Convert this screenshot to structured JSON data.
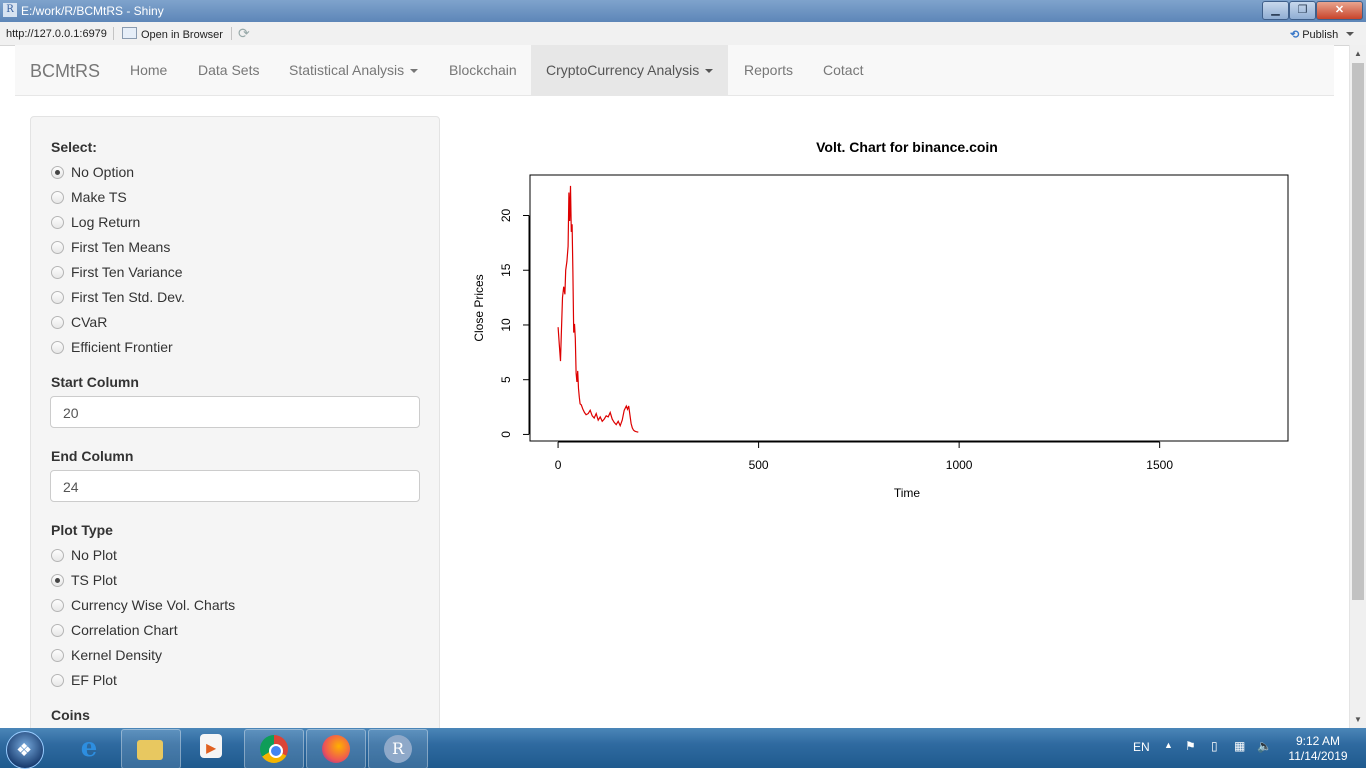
{
  "window": {
    "title": "E:/work/R/BCMtRS - Shiny",
    "app_icon": "R",
    "minimize": "▁",
    "maximize": "❐",
    "close": "✕"
  },
  "addressbar": {
    "url": "http://127.0.0.1:6979",
    "open_browser": "Open in Browser",
    "publish": "Publish"
  },
  "navbar": {
    "brand": "BCMtRS",
    "items": [
      {
        "label": "Home"
      },
      {
        "label": "Data Sets"
      },
      {
        "label": "Statistical Analysis"
      },
      {
        "label": "Blockchain"
      },
      {
        "label": "CryptoCurrency Analysis"
      },
      {
        "label": "Reports"
      },
      {
        "label": "Cotact"
      }
    ]
  },
  "sidebar": {
    "select_label": "Select:",
    "select_options": [
      "No Option",
      "Make TS",
      "Log Return",
      "First Ten Means",
      "First Ten Variance",
      "First Ten Std. Dev.",
      "CVaR",
      "Efficient Frontier"
    ],
    "select_selected": "No Option",
    "start_column_label": "Start Column",
    "start_column_value": "20",
    "end_column_label": "End Column",
    "end_column_value": "24",
    "plot_type_label": "Plot Type",
    "plot_type_options": [
      "No Plot",
      "TS Plot",
      "Currency Wise Vol. Charts",
      "Correlation Chart",
      "Kernel Density",
      "EF Plot"
    ],
    "plot_type_selected": "TS Plot",
    "coins_label": "Coins"
  },
  "chart_data": {
    "type": "line",
    "title": "Volt. Chart for  binance.coin",
    "xlabel": "Time",
    "ylabel": "Close Prices",
    "xlim": [
      -70,
      1820
    ],
    "ylim": [
      -0.6,
      23.7
    ],
    "xticks": [
      0,
      500,
      1000,
      1500
    ],
    "yticks": [
      0,
      5,
      10,
      15,
      20
    ],
    "color": "#dd0000",
    "series": [
      {
        "x": [
          0,
          3,
          6,
          8,
          11,
          14,
          17,
          19,
          22,
          25,
          27,
          29,
          31,
          33,
          35,
          37,
          39,
          41,
          43,
          45,
          47,
          49,
          51,
          53,
          55,
          58,
          62,
          66,
          70,
          75,
          80,
          85,
          90,
          95,
          100,
          105,
          110,
          115,
          120,
          125,
          130,
          135,
          140,
          145,
          150,
          155,
          160,
          165,
          170,
          173,
          176,
          179,
          182,
          185,
          188,
          191,
          195,
          200
        ],
        "y": [
          9.8,
          8.2,
          6.7,
          9.1,
          12.5,
          13.5,
          12.8,
          15.0,
          15.8,
          17.2,
          22.1,
          19.5,
          22.7,
          18.5,
          19.2,
          14.8,
          9.3,
          10.1,
          8.8,
          5.6,
          4.8,
          5.8,
          4.2,
          3.4,
          2.8,
          2.7,
          2.3,
          2.0,
          1.8,
          1.9,
          2.2,
          1.7,
          1.5,
          1.9,
          1.3,
          1.6,
          1.2,
          1.4,
          1.7,
          1.6,
          2.0,
          1.4,
          1.1,
          0.9,
          1.2,
          0.8,
          1.3,
          2.2,
          2.6,
          2.3,
          2.6,
          1.8,
          1.0,
          0.6,
          0.4,
          0.3,
          0.25,
          0.2
        ]
      }
    ]
  },
  "taskbar": {
    "language": "EN",
    "time": "9:12 AM",
    "date": "11/14/2019",
    "apps": [
      "ie-icon",
      "file-explorer-icon",
      "media-player-icon",
      "chrome-icon",
      "firefox-icon",
      "r-icon"
    ]
  }
}
